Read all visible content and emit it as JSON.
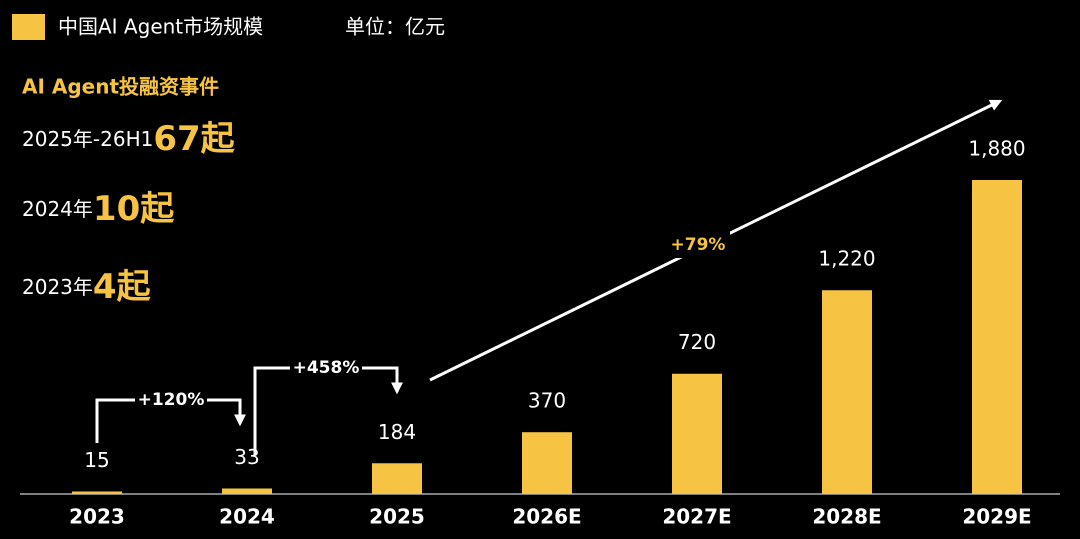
{
  "chart_data": {
    "type": "bar",
    "legend": "中国AI Agent市场规模",
    "unit": "单位：亿元",
    "color": "#f6c342",
    "categories": [
      "2023",
      "2024",
      "2025",
      "2026E",
      "2027E",
      "2028E",
      "2029E"
    ],
    "values": [
      15,
      33,
      184,
      370,
      720,
      1220,
      1880
    ],
    "value_labels": [
      "15",
      "33",
      "184",
      "370",
      "720",
      "1,220",
      "1,880"
    ],
    "annotations": [
      "+120%",
      "+458%",
      "+79%"
    ],
    "stats_title": "AI Agent投融资事件",
    "stats": [
      {
        "label": "2025年-26H1",
        "value": "67起"
      },
      {
        "label": "2024年",
        "value": "10起"
      },
      {
        "label": "2023年",
        "value": "4起"
      }
    ]
  }
}
